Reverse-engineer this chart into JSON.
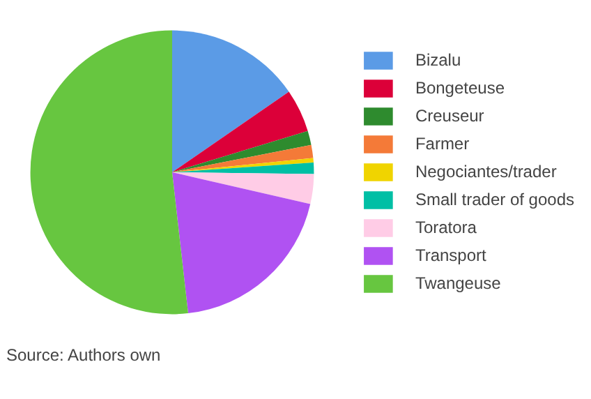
{
  "chart_data": {
    "type": "pie",
    "categories": [
      "Bizalu",
      "Bongeteuse",
      "Creuseur",
      "Farmer",
      "Negociantes/trader",
      "Small trader of goods",
      "Toratora",
      "Transport",
      "Twangeuse"
    ],
    "values": [
      15.4,
      4.9,
      1.6,
      1.5,
      0.5,
      1.3,
      3.4,
      19.6,
      51.8
    ],
    "colors": [
      "#5b9be6",
      "#dc0039",
      "#2e8b2e",
      "#f47a38",
      "#f0d400",
      "#00bfa5",
      "#ffcce6",
      "#b052f2",
      "#67c640"
    ],
    "legend": "right",
    "annotations": [
      "Source: Authors own"
    ]
  }
}
